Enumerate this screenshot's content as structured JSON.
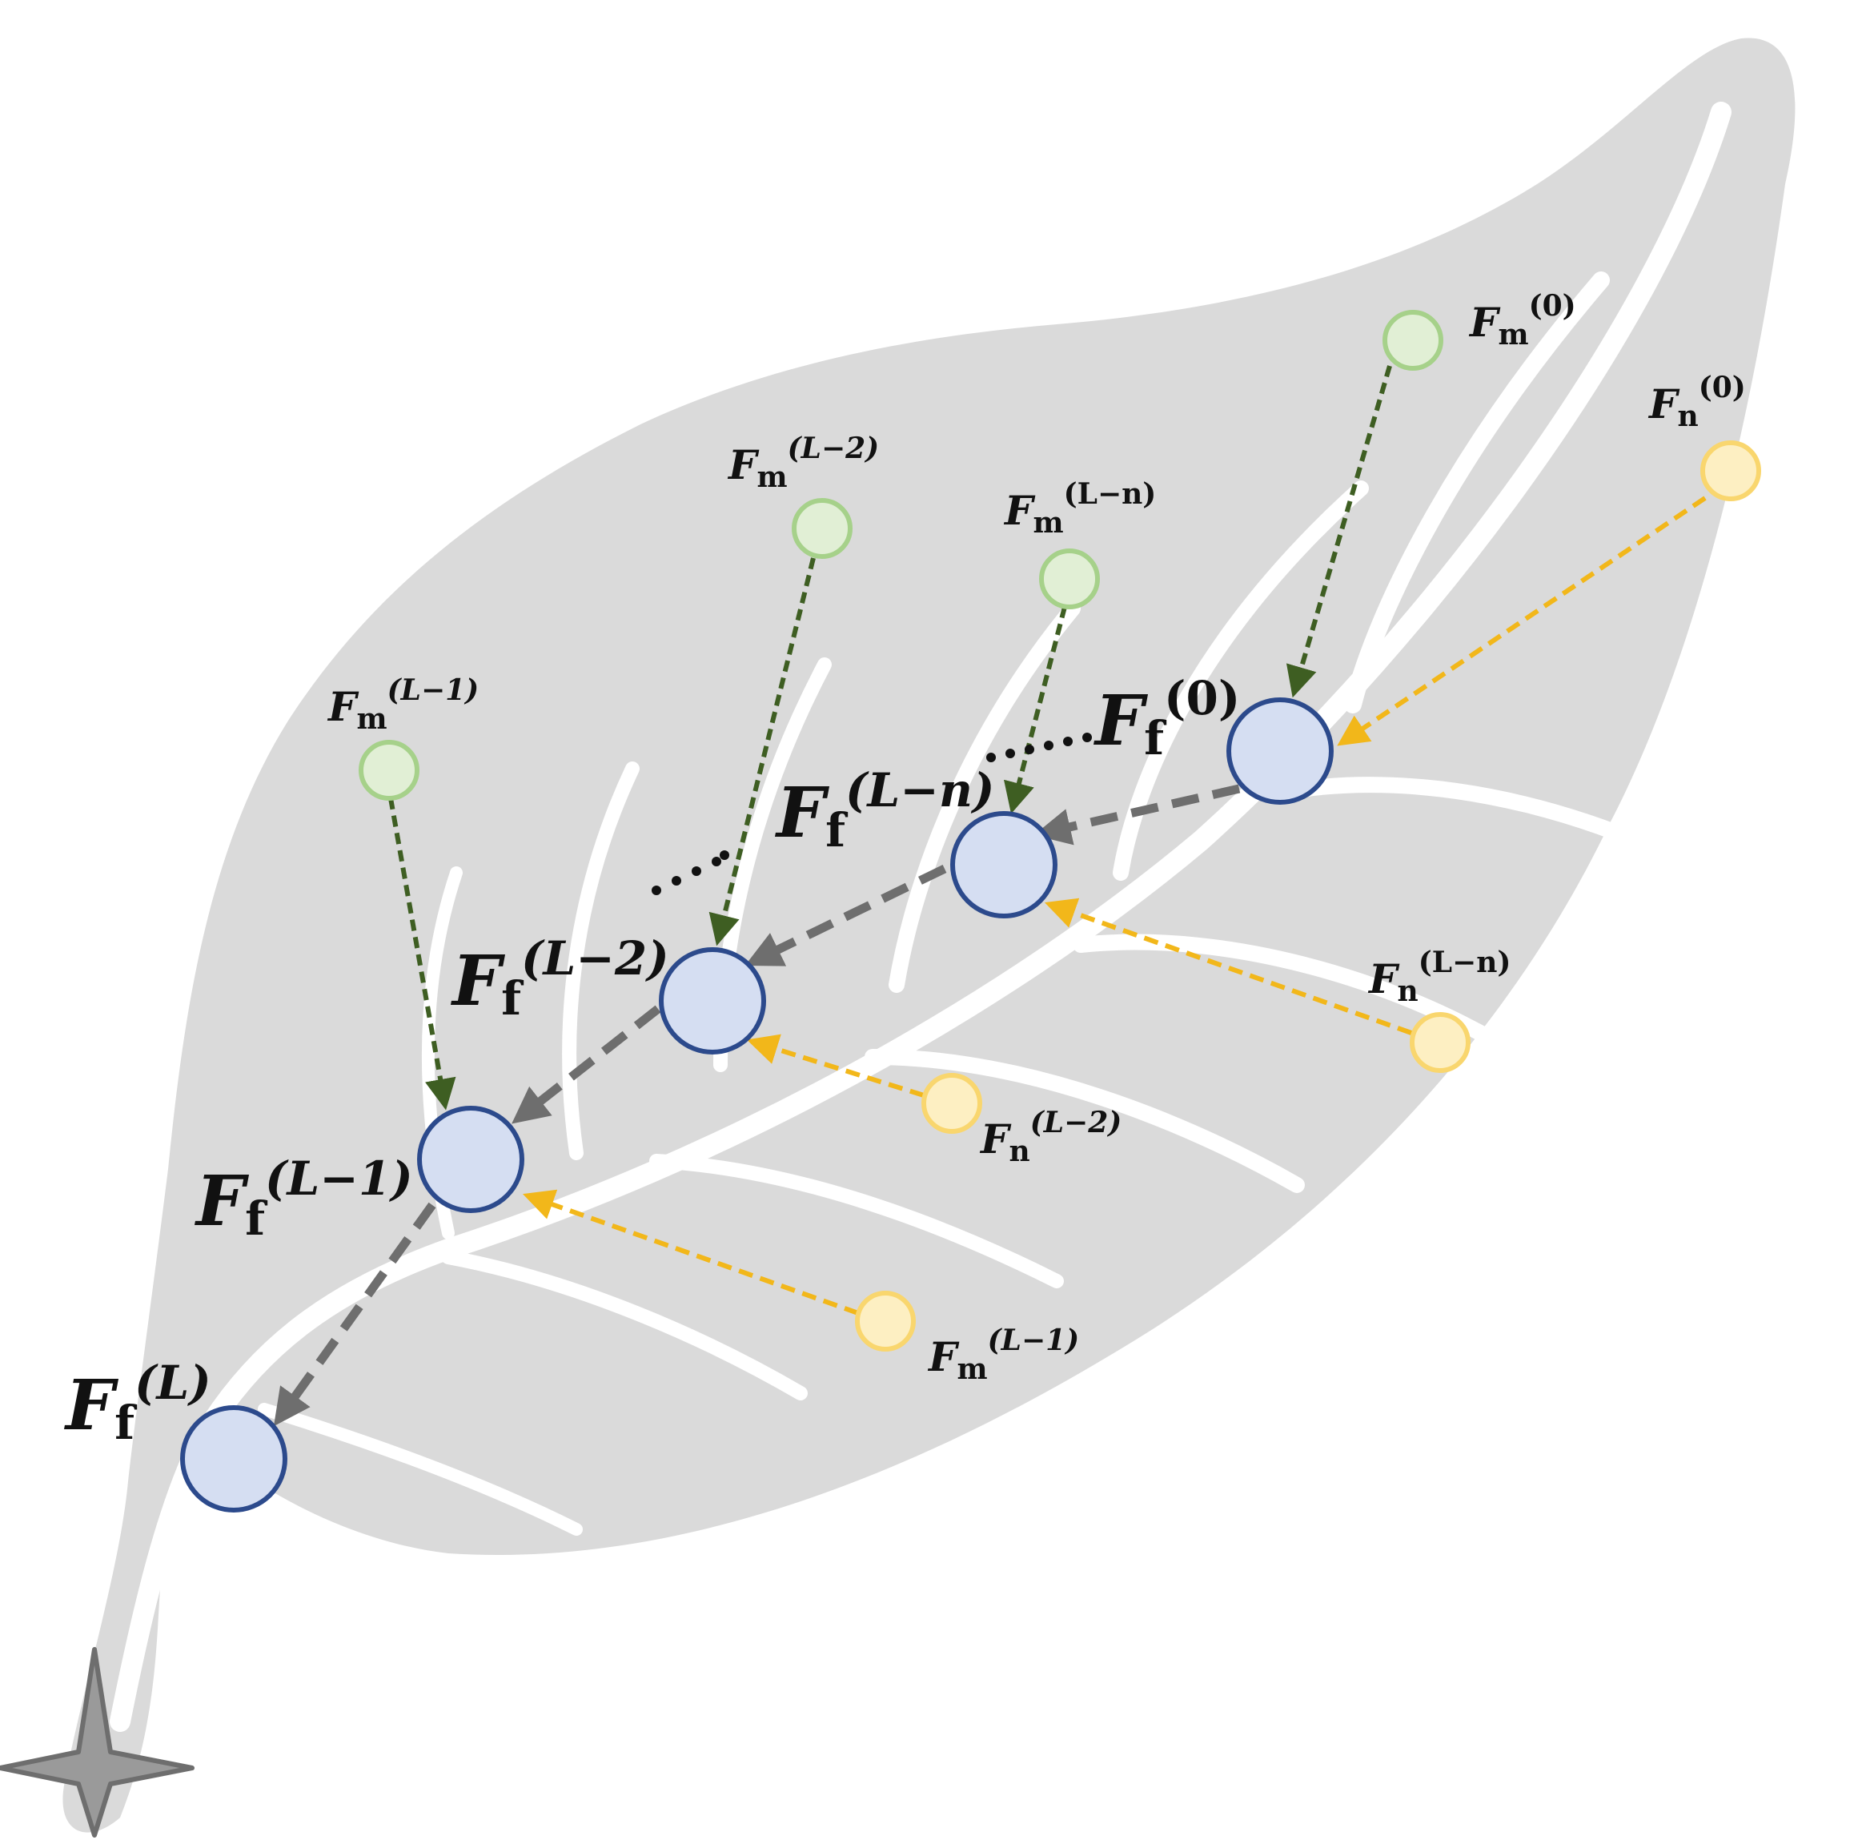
{
  "colors": {
    "background": "#ffffff",
    "leaf": "#dadada",
    "vein": "#ffffff",
    "fused_fill": "#d5def2",
    "fused_stroke": "#2c4a8c",
    "fused_arrow": "#6e6e6e",
    "m_fill": "#e1efd5",
    "m_stroke": "#a6d18a",
    "m_arrow": "#3e5e22",
    "n_fill": "#fdefc2",
    "n_stroke": "#f9d66e",
    "n_arrow": "#f2b71a",
    "ellipsis": "#111111",
    "star": "#9a9a9a"
  },
  "icons": {
    "corner": "four-point-star-icon"
  },
  "labels": {
    "base_F": "F",
    "sub_f": "f",
    "sub_m": "m",
    "sub_n": "n",
    "ff_0": "(0)",
    "ff_Ln": "(L−n)",
    "ff_L2": "(L−2)",
    "ff_L1": "(L−1)",
    "ff_L": "(L)",
    "fm_0": "(0)",
    "fm_Ln": "(L−n)",
    "fm_L2": "(L−2)",
    "fm_L1": "(L−1)",
    "fn_0": "(0)",
    "fn_Ln": "(L−n)",
    "fn_L2": "(L−2)",
    "fm_L1_lower": "(L−1)",
    "dots": "..."
  }
}
